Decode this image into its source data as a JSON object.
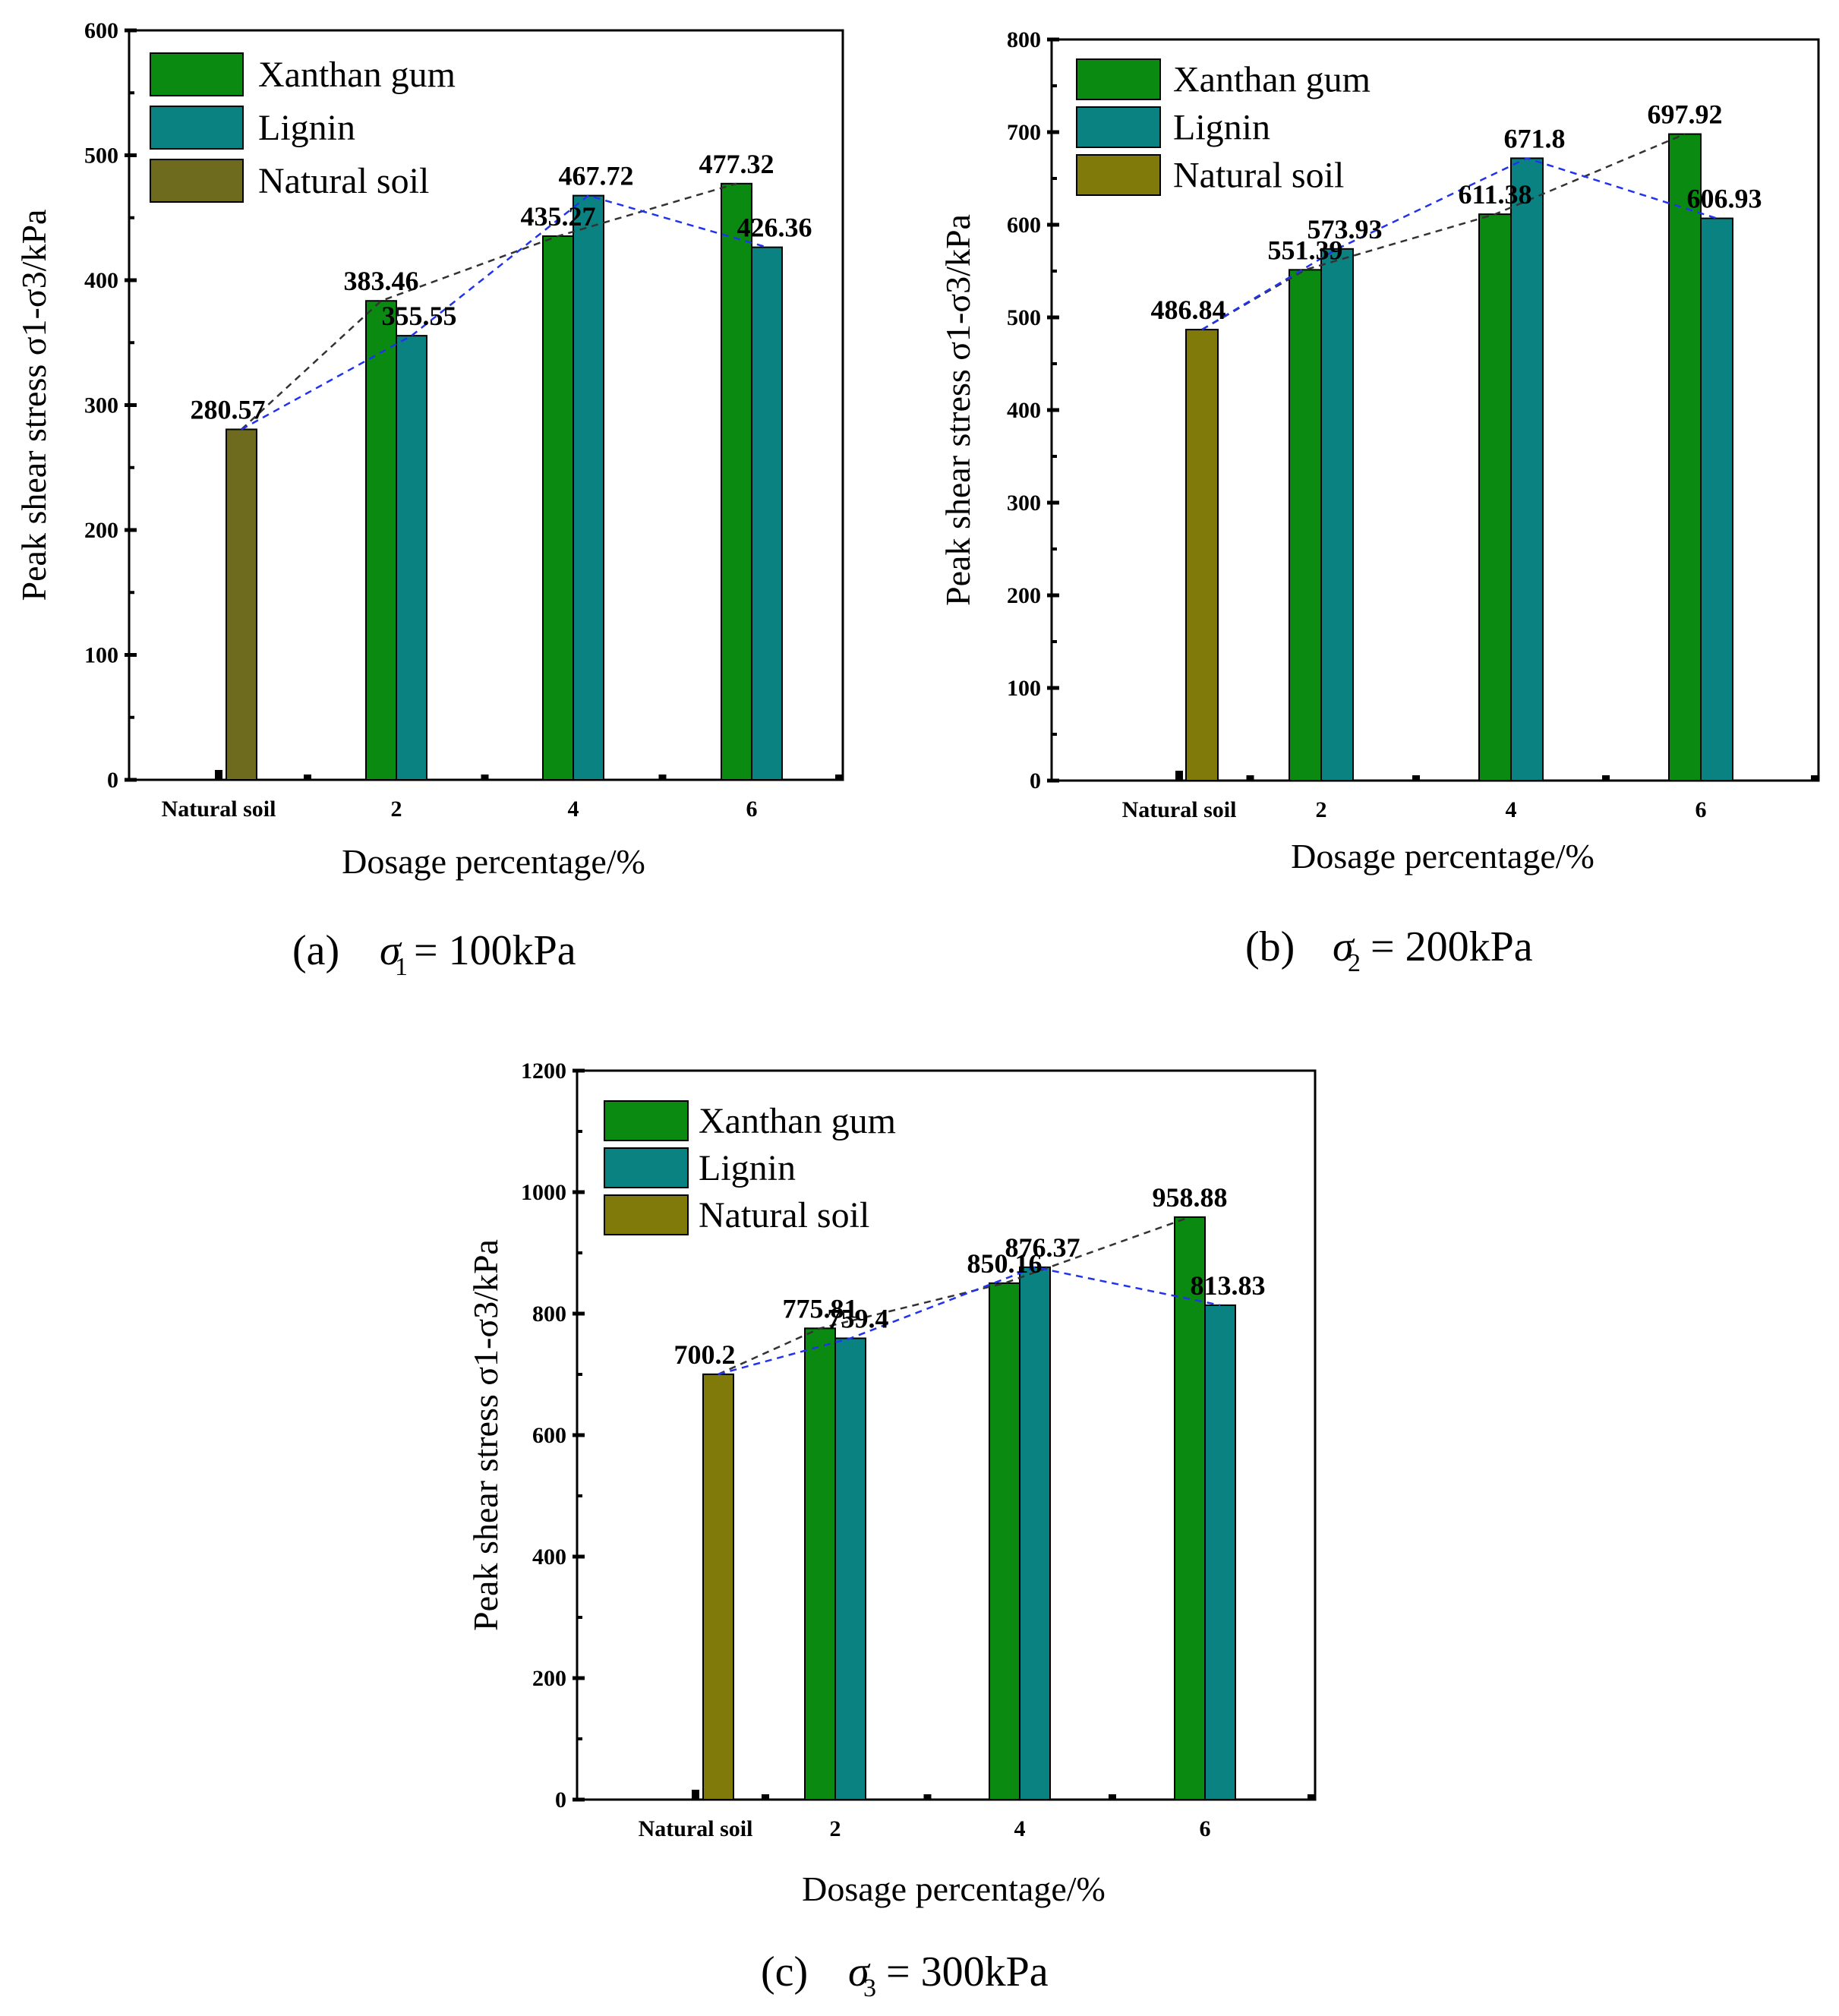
{
  "colors": {
    "xanthan": "#0a8a10",
    "lignin": "#0b8282",
    "natural_a": "#6e6a1e",
    "natural_bc": "#7f7a0a",
    "xanthan_trend": "#333333",
    "lignin_trend": "#2233ee"
  },
  "chart_data": [
    {
      "type": "bar",
      "id": "a",
      "categories": [
        "Natural soil",
        "2",
        "4",
        "6"
      ],
      "series": [
        {
          "name": "Xanthan gum",
          "values": [
            null,
            383.46,
            435.27,
            477.32
          ]
        },
        {
          "name": "Lignin",
          "values": [
            null,
            355.55,
            467.72,
            426.36
          ]
        },
        {
          "name": "Natural soil",
          "values": [
            280.57,
            null,
            null,
            null
          ]
        }
      ],
      "value_labels": {
        "natural": "280.57",
        "xanthan": [
          "383.46",
          "435.27",
          "477.32"
        ],
        "lignin": [
          "355.55",
          "467.72",
          "426.36"
        ]
      },
      "ylim": [
        0,
        600
      ],
      "yticks": [
        "0",
        "100",
        "200",
        "300",
        "400",
        "500",
        "600"
      ],
      "xlabel": "Dosage percentage/%",
      "ylabel": "Peak shear stress σ1-σ3/kPa",
      "legend": [
        "Xanthan gum",
        "Lignin",
        "Natural soil"
      ],
      "legend_position": "top-left",
      "caption": {
        "label": "(a)",
        "sigma": "σ",
        "sub": "1",
        "rest": " = 100kPa"
      }
    },
    {
      "type": "bar",
      "id": "b",
      "categories": [
        "Natural soil",
        "2",
        "4",
        "6"
      ],
      "series": [
        {
          "name": "Xanthan gum",
          "values": [
            null,
            551.39,
            611.38,
            697.92
          ]
        },
        {
          "name": "Lignin",
          "values": [
            null,
            573.93,
            671.8,
            606.93
          ]
        },
        {
          "name": "Natural soil",
          "values": [
            486.84,
            null,
            null,
            null
          ]
        }
      ],
      "value_labels": {
        "natural": "486.84",
        "xanthan": [
          "551.39",
          "611.38",
          "697.92"
        ],
        "lignin": [
          "573.93",
          "671.8",
          "606.93"
        ]
      },
      "ylim": [
        0,
        800
      ],
      "yticks": [
        "0",
        "100",
        "200",
        "300",
        "400",
        "500",
        "600",
        "700",
        "800"
      ],
      "xlabel": "Dosage percentage/%",
      "ylabel": "Peak shear stress σ1-σ3/kPa",
      "legend": [
        "Xanthan gum",
        "Lignin",
        "Natural soil"
      ],
      "legend_position": "top-left",
      "caption": {
        "label": "(b)",
        "sigma": "σ",
        "sub": "2",
        "rest": " = 200kPa"
      }
    },
    {
      "type": "bar",
      "id": "c",
      "categories": [
        "Natural soil",
        "2",
        "4",
        "6"
      ],
      "series": [
        {
          "name": "Xanthan gum",
          "values": [
            null,
            775.81,
            850.16,
            958.88
          ]
        },
        {
          "name": "Lignin",
          "values": [
            null,
            759.4,
            876.37,
            813.83
          ]
        },
        {
          "name": "Natural soil",
          "values": [
            700.2,
            null,
            null,
            null
          ]
        }
      ],
      "value_labels": {
        "natural": "700.2",
        "xanthan": [
          "775.81",
          "850.16",
          "958.88"
        ],
        "lignin": [
          "759.4",
          "876.37",
          "813.83"
        ]
      },
      "ylim": [
        0,
        1200
      ],
      "yticks": [
        "0",
        "200",
        "400",
        "600",
        "800",
        "1000",
        "1200"
      ],
      "xlabel": "Dosage percentage/%",
      "ylabel": "Peak shear stress σ1-σ3/kPa",
      "legend": [
        "Xanthan gum",
        "Lignin",
        "Natural soil"
      ],
      "legend_position": "top-left",
      "caption": {
        "label": "(c)",
        "sigma": "σ",
        "sub": "3",
        "rest": " = 300kPa"
      }
    }
  ]
}
